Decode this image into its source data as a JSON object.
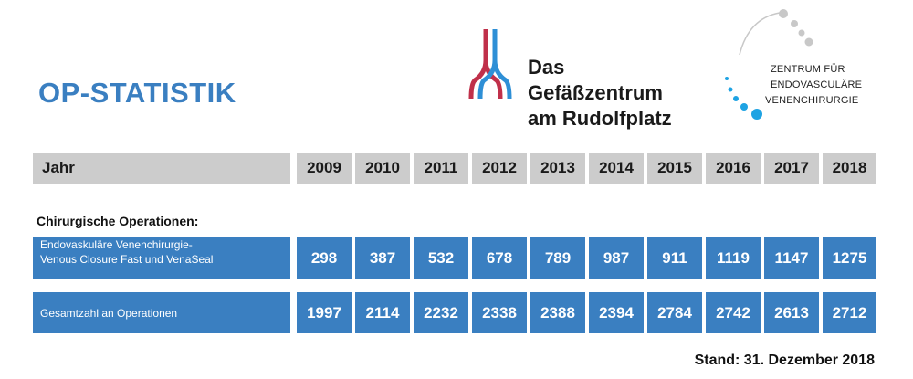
{
  "header": {
    "title": "OP-STATISTIK"
  },
  "logo_main": {
    "line1": "Das Gefäßzentrum",
    "line2": "am Rudolfplatz",
    "colors": {
      "red": "#c0304a",
      "blue": "#2e8fd6"
    }
  },
  "logo_secondary": {
    "line1": "ZENTRUM FÜR",
    "line2": "ENDOVASCULÄRE",
    "line3": "VENENCHIRURGIE",
    "colors": {
      "grey": "#c8c8c8",
      "blue": "#1ea3e3"
    }
  },
  "table": {
    "year_label": "Jahr",
    "years": [
      "2009",
      "2010",
      "2011",
      "2012",
      "2013",
      "2014",
      "2015",
      "2016",
      "2017",
      "2018"
    ],
    "section_title": "Chirurgische Operationen:",
    "rows": [
      {
        "label_line1": "Endovaskuläre Venenchirurgie-",
        "label_line2": "Venous Closure Fast und VenaSeal",
        "values": [
          "298",
          "387",
          "532",
          "678",
          "789",
          "987",
          "911",
          "1119",
          "1147",
          "1275"
        ]
      },
      {
        "label_line1": "Gesamtzahl an Operationen",
        "values": [
          "1997",
          "2114",
          "2232",
          "2338",
          "2388",
          "2394",
          "2784",
          "2742",
          "2613",
          "2712"
        ]
      }
    ]
  },
  "footer": {
    "stand": "Stand: 31. Dezember 2018"
  },
  "colors": {
    "accent": "#3a7fc1",
    "header_bg": "#cccccc"
  }
}
